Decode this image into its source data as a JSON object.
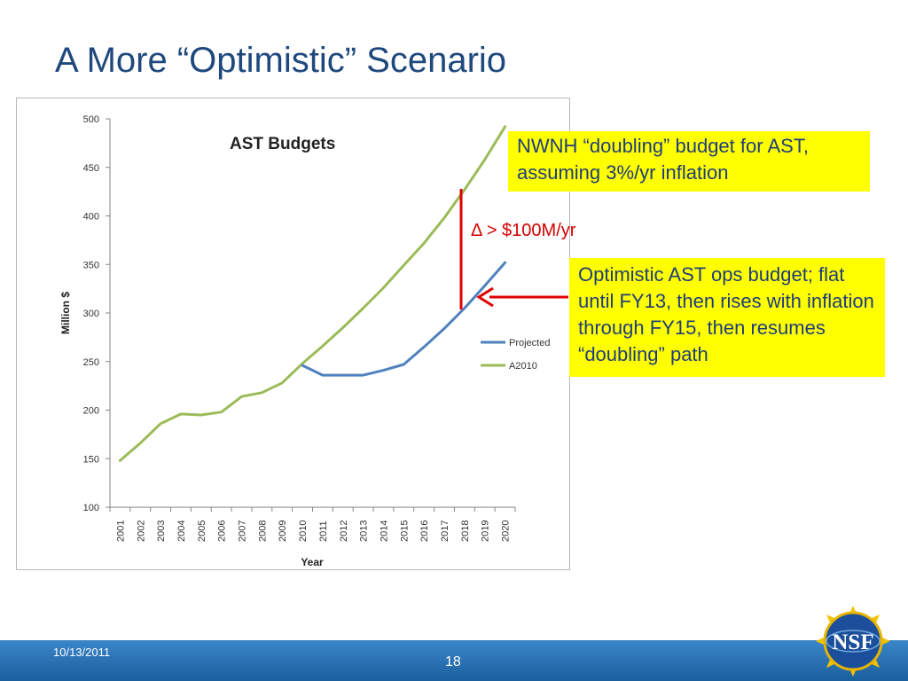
{
  "slide": {
    "title": "A More “Optimistic” Scenario",
    "footer_date": "10/13/2011",
    "page_number": "18",
    "logo_text": "NSF"
  },
  "annotations": {
    "nwnh_callout": "NWNH “doubling” budget for AST, assuming 3%/yr inflation",
    "delta_label": "Δ > $100M/yr",
    "ops_callout": "Optimistic AST ops budget; flat until FY13, then rises with inflation through FY15, then resumes “doubling” path"
  },
  "colors": {
    "title": "#1f497d",
    "projected": "#4f81bd",
    "a2010": "#9bbb59",
    "callout_bg": "#ffff00",
    "delta": "#e00000",
    "footer": "#2a74b8"
  },
  "chart_data": {
    "type": "line",
    "title": "AST  Budgets",
    "xlabel": "Year",
    "ylabel": "Million $",
    "ylim": [
      100,
      500
    ],
    "yticks": [
      100,
      150,
      200,
      250,
      300,
      350,
      400,
      450,
      500
    ],
    "x": [
      "2001",
      "2002",
      "2003",
      "2004",
      "2005",
      "2006",
      "2007",
      "2008",
      "2009",
      "2010",
      "2011",
      "2012",
      "2013",
      "2014",
      "2015",
      "2016",
      "2017",
      "2018",
      "2019",
      "2020"
    ],
    "grid": false,
    "legend_position": "right",
    "series": [
      {
        "name": "Projected",
        "color": "#4f81bd",
        "values": [
          null,
          null,
          null,
          null,
          null,
          null,
          null,
          null,
          null,
          246,
          236,
          236,
          236,
          241,
          247,
          265,
          284,
          305,
          328,
          352
        ]
      },
      {
        "name": "A2010",
        "color": "#9bbb59",
        "values": [
          148,
          166,
          186,
          196,
          195,
          198,
          214,
          218,
          228,
          248,
          266,
          285,
          305,
          326,
          349,
          372,
          398,
          427,
          458,
          492
        ]
      }
    ]
  }
}
